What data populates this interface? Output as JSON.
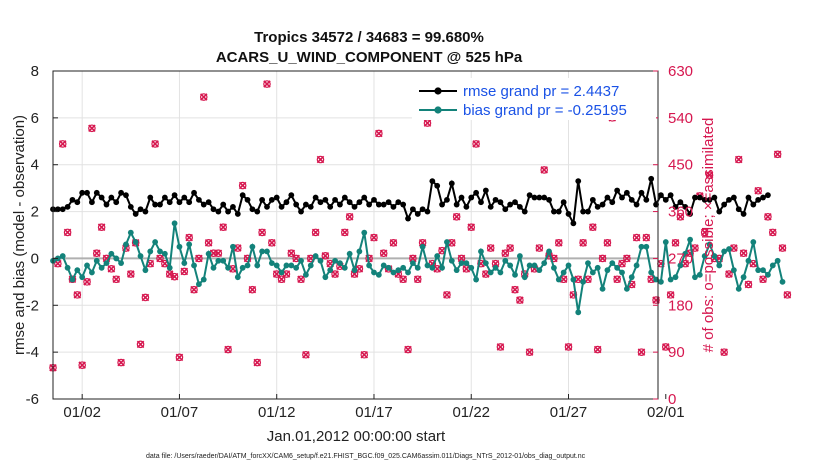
{
  "chart_data": {
    "type": "line",
    "title_line1": "Tropics 34572 / 34683 = 99.680%",
    "title_line2": "ACARS_U_WIND_COMPONENT @ 525 hPa",
    "xlabel": "Jan.01,2012 00:00:00 start",
    "ylabel_left": "rmse and bias (model - observation)",
    "ylabel_right": "# of obs: o=possible; ×=assimilated",
    "footnote": "data file: /Users/raeder/DAI/ATM_forcXX/CAM6_setup/f.e21.FHIST_BGC.f09_025.CAM6assim.011/Diags_NTrS_2012-01/obs_diag_output.nc",
    "xlim": [
      0.5,
      31.6
    ],
    "ylim_left": [
      -6,
      8
    ],
    "ylim_right": [
      0,
      630
    ],
    "x_ticks": [
      {
        "value": 2,
        "label": "01/02"
      },
      {
        "value": 7,
        "label": "01/07"
      },
      {
        "value": 12,
        "label": "01/12"
      },
      {
        "value": 17,
        "label": "01/17"
      },
      {
        "value": 22,
        "label": "01/22"
      },
      {
        "value": 27,
        "label": "01/27"
      },
      {
        "value": 32,
        "label": "02/01"
      }
    ],
    "y_ticks_left": [
      -6,
      -4,
      -2,
      0,
      2,
      4,
      6,
      8
    ],
    "y_ticks_right": [
      0,
      90,
      180,
      270,
      360,
      450,
      540,
      630
    ],
    "grid": true,
    "legend_position": "top-right",
    "series": [
      {
        "name": "rmse grand pr = 2.4437",
        "color": "#000000",
        "axis": "left",
        "x_start": 0.5,
        "x_step": 0.25,
        "values": [
          2.1,
          2.1,
          2.1,
          2.2,
          2.5,
          2.4,
          2.8,
          2.8,
          2.4,
          2.8,
          2.6,
          2.3,
          2.6,
          2.4,
          2.8,
          2.7,
          2.2,
          1.9,
          2.1,
          2.0,
          2.6,
          2.3,
          2.3,
          2.6,
          2.4,
          2.7,
          2.4,
          2.6,
          2.4,
          2.8,
          2.5,
          2.3,
          2.4,
          2.1,
          2.0,
          2.3,
          2.0,
          2.2,
          1.9,
          2.7,
          2.5,
          2.1,
          2.0,
          2.5,
          2.2,
          2.5,
          2.6,
          2.2,
          2.4,
          2.7,
          2.3,
          2.0,
          2.3,
          2.2,
          2.6,
          2.4,
          2.5,
          2.2,
          2.5,
          2.3,
          2.6,
          2.4,
          2.2,
          2.4,
          2.6,
          2.3,
          2.5,
          2.3,
          2.3,
          2.4,
          2.2,
          2.4,
          2.3,
          1.7,
          2.1,
          1.9,
          2.1,
          2.0,
          3.3,
          3.1,
          2.3,
          2.5,
          3.2,
          2.3,
          2.6,
          2.2,
          2.6,
          2.8,
          2.4,
          2.9,
          2.2,
          2.5,
          2.4,
          2.1,
          2.3,
          2.4,
          2.2,
          2.0,
          2.7,
          2.6,
          2.6,
          2.6,
          2.5,
          2.0,
          2.0,
          2.4,
          1.9,
          1.5,
          3.3,
          2.0,
          2.0,
          2.5,
          2.2,
          2.3,
          2.6,
          2.4,
          2.9,
          2.6,
          2.8,
          2.5,
          2.3,
          2.8,
          2.5,
          3.4,
          2.3,
          2.7,
          2.5,
          2.7,
          2.2,
          2.4,
          2.2,
          1.9,
          2.6,
          2.6,
          2.5,
          2.5,
          2.6,
          2.0,
          2.3,
          2.5,
          2.6,
          2.1,
          1.9,
          2.6,
          2.3,
          2.5,
          2.6,
          2.7
        ]
      },
      {
        "name": "bias grand pr = -0.25195",
        "color": "#13827a",
        "axis": "left",
        "x_start": 0.5,
        "x_step": 0.25,
        "values": [
          -0.1,
          0.0,
          0.1,
          -0.4,
          -0.9,
          -0.5,
          -0.8,
          -0.3,
          -0.6,
          -0.1,
          -0.4,
          -0.2,
          0.2,
          0.0,
          -0.2,
          0.6,
          1.1,
          0.7,
          0.1,
          -0.5,
          0.3,
          0.7,
          0.3,
          0.2,
          -0.4,
          1.5,
          0.5,
          -0.2,
          0.6,
          -0.3,
          -1.1,
          -0.9,
          0.2,
          -0.4,
          -0.1,
          -0.1,
          -0.4,
          0.5,
          -0.8,
          -0.4,
          -0.3,
          0.5,
          -0.3,
          0.3,
          0.3,
          -0.2,
          -0.3,
          -0.6,
          -0.3,
          -0.3,
          -0.4,
          -0.1,
          -0.7,
          -0.3,
          0.1,
          -0.1,
          -0.8,
          -0.5,
          -0.1,
          -0.2,
          -0.4,
          0.2,
          -0.5,
          0.3,
          1.1,
          -0.3,
          -0.6,
          -0.7,
          -0.3,
          -0.4,
          -0.6,
          -0.5,
          -0.4,
          -0.6,
          -0.2,
          -0.4,
          0.5,
          -0.3,
          -0.4,
          0.1,
          -0.4,
          0.7,
          -0.1,
          -0.5,
          -0.2,
          -0.2,
          -0.4,
          -0.9,
          0.3,
          -0.2,
          -0.6,
          -0.4,
          -0.6,
          -0.1,
          -0.3,
          -0.7,
          0.1,
          -0.8,
          -0.3,
          -0.3,
          -0.5,
          -0.2,
          0.3,
          -0.4,
          -0.9,
          -0.6,
          -0.3,
          -0.9,
          -2.3,
          -1.0,
          -0.2,
          -0.6,
          -0.4,
          -1.3,
          -0.5,
          -0.2,
          -0.4,
          -0.6,
          -1.3,
          -0.8,
          -0.3,
          0.5,
          0.5,
          -0.6,
          -0.9,
          -1.0,
          0.7,
          -0.9,
          -0.8,
          -0.3,
          0.2,
          0.8,
          -0.8,
          -0.7,
          0.1,
          0.6,
          0.1,
          -0.3,
          0.3,
          0.4,
          -0.5,
          -1.3,
          -0.8,
          -0.1,
          0.7,
          -0.5,
          -0.5,
          -0.7,
          -0.3,
          -0.1,
          -1.0
        ]
      },
      {
        "name": "possible",
        "marker": "o",
        "color": "#d6174f",
        "axis": "right",
        "x_start": 0.5,
        "x_step": 0.25,
        "values": [
          60,
          260,
          490,
          320,
          230,
          200,
          65,
          225,
          520,
          280,
          330,
          270,
          250,
          230,
          70,
          290,
          240,
          300,
          105,
          195,
          260,
          490,
          270,
          260,
          240,
          235,
          80,
          245,
          310,
          210,
          270,
          580,
          300,
          280,
          280,
          330,
          95,
          250,
          290,
          410,
          270,
          210,
          70,
          320,
          605,
          300,
          240,
          230,
          240,
          280,
          270,
          230,
          85,
          270,
          320,
          460,
          275,
          260,
          240,
          255,
          320,
          350,
          240,
          250,
          85,
          270,
          310,
          510,
          280,
          250,
          300,
          240,
          230,
          95,
          270,
          230,
          300,
          530,
          260,
          250,
          285,
          200,
          300,
          350,
          270,
          250,
          330,
          490,
          260,
          240,
          290,
          260,
          100,
          280,
          290,
          210,
          190,
          240,
          90,
          250,
          290,
          440,
          275,
          270,
          300,
          230,
          100,
          200,
          230,
          300,
          230,
          330,
          95,
          270,
          300,
          540,
          230,
          260,
          270,
          220,
          310,
          90,
          310,
          230,
          190,
          260,
          100,
          200,
          300,
          350,
          260,
          280,
          290,
          390,
          320,
          430,
          270,
          270,
          90,
          240,
          290,
          460,
          280,
          220,
          260,
          400,
          230,
          350,
          320,
          470,
          290,
          200
        ]
      },
      {
        "name": "assimilated",
        "marker": "x",
        "color": "#d6174f",
        "axis": "right",
        "x_start": 0.5,
        "x_step": 0.25,
        "values": [
          60,
          260,
          490,
          320,
          230,
          200,
          65,
          225,
          520,
          280,
          330,
          270,
          250,
          230,
          70,
          290,
          240,
          300,
          105,
          195,
          260,
          490,
          270,
          260,
          240,
          235,
          80,
          245,
          310,
          210,
          270,
          580,
          300,
          280,
          280,
          330,
          95,
          250,
          290,
          410,
          270,
          210,
          70,
          320,
          605,
          300,
          240,
          230,
          240,
          280,
          270,
          230,
          85,
          270,
          320,
          460,
          275,
          260,
          240,
          255,
          320,
          350,
          240,
          250,
          85,
          270,
          310,
          510,
          280,
          250,
          300,
          240,
          230,
          95,
          270,
          230,
          300,
          530,
          260,
          250,
          285,
          200,
          300,
          350,
          270,
          250,
          330,
          490,
          260,
          240,
          290,
          260,
          100,
          280,
          290,
          210,
          190,
          240,
          90,
          250,
          290,
          440,
          275,
          270,
          300,
          230,
          100,
          200,
          230,
          300,
          230,
          330,
          95,
          270,
          300,
          540,
          230,
          260,
          270,
          220,
          310,
          90,
          310,
          230,
          190,
          260,
          100,
          200,
          300,
          350,
          260,
          280,
          290,
          390,
          320,
          430,
          270,
          270,
          90,
          240,
          290,
          460,
          280,
          220,
          260,
          400,
          230,
          350,
          320,
          470,
          290,
          200
        ]
      }
    ]
  }
}
